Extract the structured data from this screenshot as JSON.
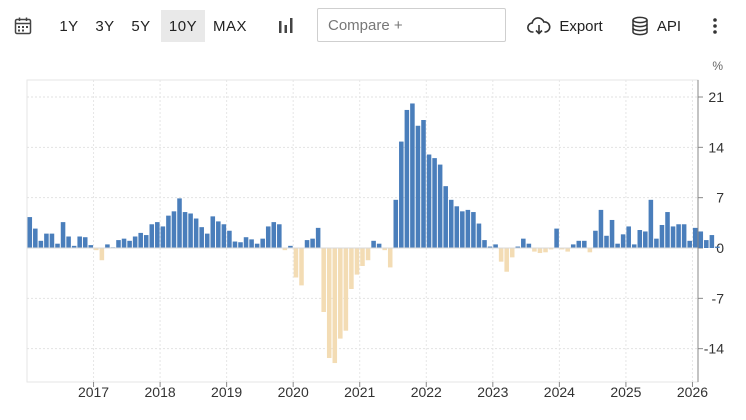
{
  "toolbar": {
    "ranges": [
      "1Y",
      "3Y",
      "5Y",
      "10Y",
      "MAX"
    ],
    "active_range": "10Y",
    "compare_placeholder": "Compare +",
    "export_label": "Export",
    "api_label": "API"
  },
  "icons": {
    "calendar": "calendar-icon",
    "chart_type": "bar-chart-icon",
    "export": "cloud-download-icon",
    "api": "database-icon",
    "menu": "more-vertical-icon"
  },
  "colors": {
    "positive": "#4a7ebb",
    "negative": "#f3dcb4"
  },
  "chart_data": {
    "type": "bar",
    "unit": "%",
    "ylim": [
      -18,
      22
    ],
    "yticks": [
      21,
      14,
      7,
      0,
      -7,
      -14
    ],
    "xticks": [
      "2017",
      "2018",
      "2019",
      "2020",
      "2021",
      "2022",
      "2023",
      "2024",
      "2025",
      "2026"
    ],
    "start": "2016-01",
    "end": "2026-01",
    "grid": true,
    "y_axis_side": "right",
    "series": [
      {
        "values": [
          4.3,
          2.7,
          1.0,
          2.0,
          2.0,
          0.6,
          3.6,
          1.6,
          0.3,
          1.6,
          1.5,
          0.4,
          -0.3,
          -1.7,
          0.5,
          0.1,
          1.1,
          1.3,
          1.0,
          1.6,
          2.1,
          1.8,
          3.3,
          3.6,
          3.0,
          4.5,
          5.1,
          6.9,
          5.0,
          4.8,
          4.1,
          2.9,
          2.0,
          4.4,
          3.7,
          3.3,
          2.4,
          0.9,
          0.8,
          1.5,
          1.2,
          0.6,
          1.3,
          3.0,
          3.6,
          3.3,
          -0.3,
          0.3,
          -4.1,
          -5.2,
          1.1,
          1.3,
          2.8,
          -8.9,
          -15.3,
          -16.0,
          -12.6,
          -11.5,
          -5.7,
          -3.7,
          -2.5,
          -1.7,
          1.0,
          0.6,
          -0.3,
          -2.7,
          6.7,
          14.8,
          19.2,
          20.1,
          17.0,
          17.8,
          13.0,
          12.5,
          11.6,
          8.6,
          6.7,
          5.8,
          5.1,
          5.3,
          5.0,
          3.4,
          1.1,
          0.2,
          0.5,
          -1.9,
          -3.3,
          -1.3,
          0.2,
          1.3,
          0.6,
          -0.5,
          -0.7,
          -0.6,
          -0.2,
          2.7,
          -0.2,
          -0.5,
          0.5,
          1.0,
          1.0,
          -0.6,
          2.4,
          5.3,
          1.7,
          3.9,
          0.6,
          1.9,
          3.0,
          0.5,
          2.5,
          2.3,
          6.7,
          1.3,
          3.2,
          5.0,
          3.0,
          3.3,
          3.3,
          1.0,
          2.8,
          2.3,
          1.1,
          1.8,
          0.2
        ]
      }
    ]
  }
}
